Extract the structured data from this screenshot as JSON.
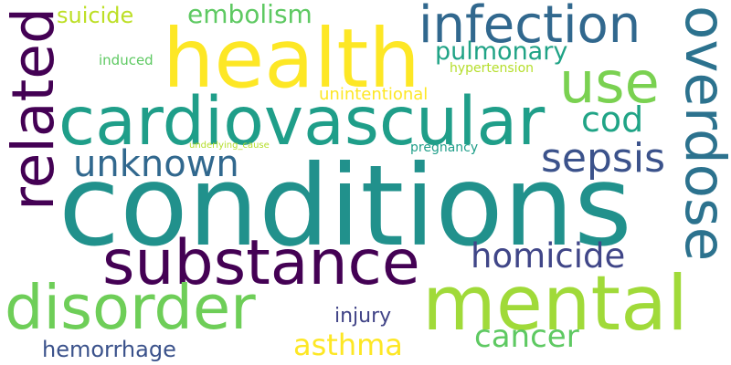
{
  "words": [
    {
      "id": "conditions",
      "text": "conditions",
      "color": "#21918c"
    },
    {
      "id": "health",
      "text": "health",
      "color": "#fde725"
    },
    {
      "id": "cardiovascular",
      "text": "cardiovascular",
      "color": "#1f9e89"
    },
    {
      "id": "substance",
      "text": "substance",
      "color": "#440154"
    },
    {
      "id": "mental",
      "text": "mental",
      "color": "#a0da39"
    },
    {
      "id": "disorder",
      "text": "disorder",
      "color": "#6ece58"
    },
    {
      "id": "related",
      "text": "related",
      "color": "#440154"
    },
    {
      "id": "overdose",
      "text": "overdose",
      "color": "#2c728e"
    },
    {
      "id": "infection",
      "text": "infection",
      "color": "#31688e"
    },
    {
      "id": "use",
      "text": "use",
      "color": "#7ad151"
    },
    {
      "id": "sepsis",
      "text": "sepsis",
      "color": "#3b528b"
    },
    {
      "id": "unknown",
      "text": "unknown",
      "color": "#31688e"
    },
    {
      "id": "cod",
      "text": "cod",
      "color": "#20a486"
    },
    {
      "id": "homicide",
      "text": "homicide",
      "color": "#404688"
    },
    {
      "id": "cancer",
      "text": "cancer",
      "color": "#5ec962"
    },
    {
      "id": "asthma",
      "text": "asthma",
      "color": "#fde725"
    },
    {
      "id": "hemorrhage",
      "text": "hemorrhage",
      "color": "#3b528b"
    },
    {
      "id": "injury",
      "text": "injury",
      "color": "#414487"
    },
    {
      "id": "pulmonary",
      "text": "pulmonary",
      "color": "#20a386"
    },
    {
      "id": "embolism",
      "text": "embolism",
      "color": "#5ec962"
    },
    {
      "id": "suicide",
      "text": "suicide",
      "color": "#bddf26"
    },
    {
      "id": "hypertension",
      "text": "hypertension",
      "color": "#b5de2b"
    },
    {
      "id": "unintentional",
      "text": "unintentional",
      "color": "#fde725"
    },
    {
      "id": "induced",
      "text": "induced",
      "color": "#5ec962"
    },
    {
      "id": "underlying_cause",
      "text": "underlying_cause",
      "color": "#b5de2b"
    },
    {
      "id": "pregnancy",
      "text": "pregnancy",
      "color": "#1f9e89"
    }
  ]
}
